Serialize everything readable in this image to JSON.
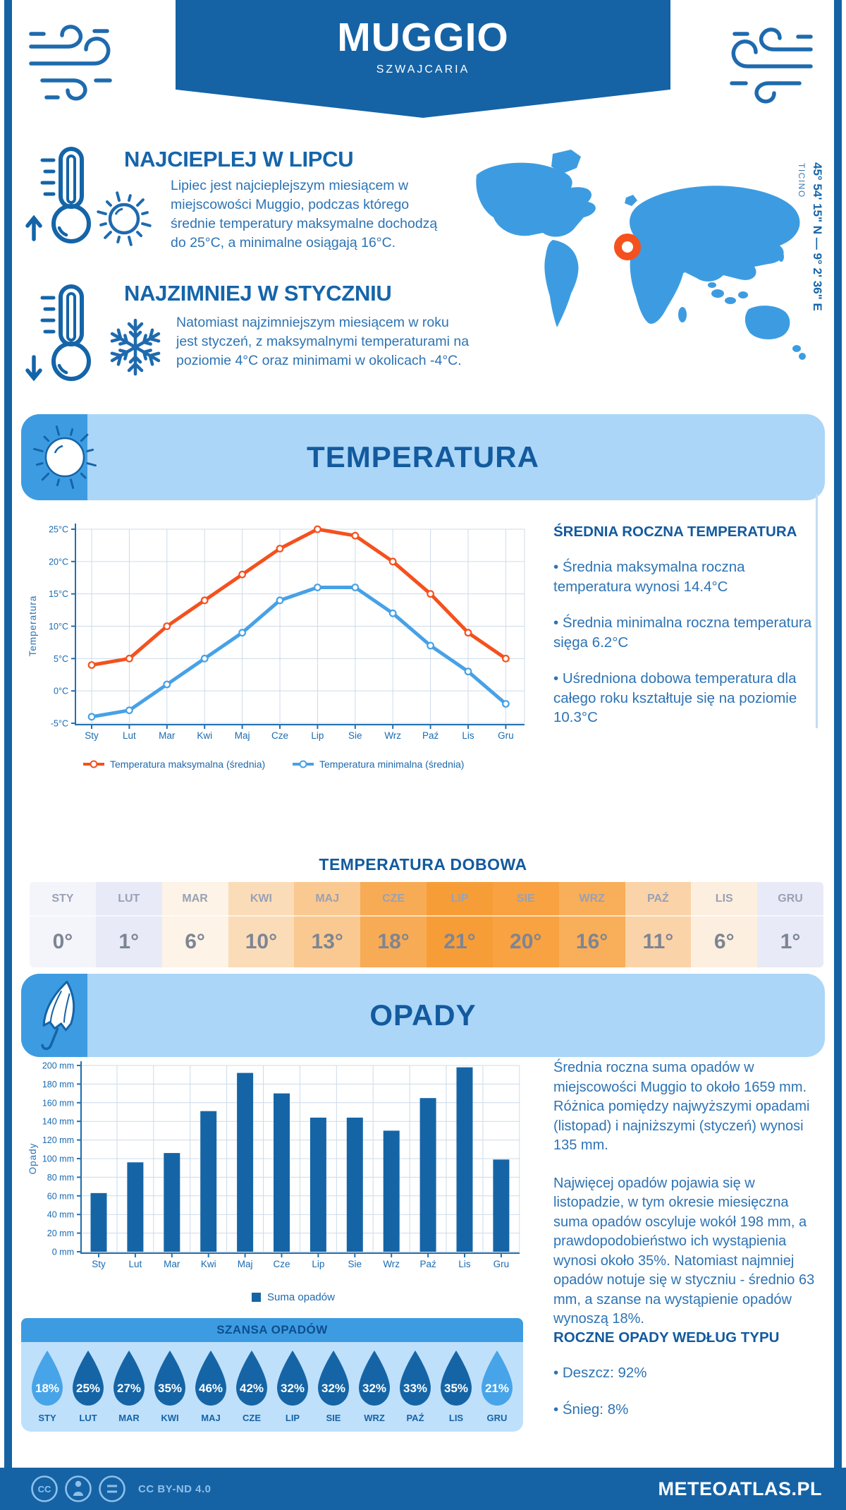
{
  "header": {
    "title": "MUGGIO",
    "subtitle": "SZWAJCARIA"
  },
  "highlights": {
    "warm": {
      "title": "NAJCIEPLEJ W LIPCU",
      "text": "Lipiec jest najcieplejszym miesiącem w miejscowości Muggio, podczas którego średnie temperatury maksymalne dochodzą do 25°C, a minimalne osiągają 16°C."
    },
    "cold": {
      "title": "NAJZIMNIEJ W STYCZNIU",
      "text": "Natomiast najzimniejszym miesiącem w roku jest styczeń, z maksymalnymi temperaturami na poziomie 4°C oraz minimami w okolicach -4°C."
    }
  },
  "map": {
    "coordinates": "45° 54' 15\" N — 9° 2' 36\" E",
    "region_label": "TICINO"
  },
  "temperature_section": {
    "banner": "TEMPERATURA",
    "annual": {
      "heading": "ŚREDNIA ROCZNA TEMPERATURA",
      "bullets": [
        "• Średnia maksymalna roczna temperatura wynosi 14.4°C",
        "• Średnia minimalna roczna temperatura sięga 6.2°C",
        "• Uśredniona dobowa temperatura dla całego roku kształtuje się na poziomie 10.3°C"
      ]
    }
  },
  "precipitation_section": {
    "banner": "OPADY",
    "summary_1": "Średnia roczna suma opadów w miejscowości Muggio to około 1659 mm. Różnica pomiędzy najwyższymi opadami (listopad) i najniższymi (styczeń) wynosi 135 mm.",
    "summary_2": "Najwięcej opadów pojawia się w listopadzie, w tym okresie miesięczna suma opadów oscyluje wokół 198 mm, a prawdopodobieństwo ich wystąpienia wynosi około 35%. Natomiast najmniej opadów notuje się w styczniu - średnio 63 mm, a szanse na wystąpienie opadów wynoszą 18%.",
    "types": {
      "heading": "ROCZNE OPADY WEDŁUG TYPU",
      "bullets": [
        "• Deszcz: 92%",
        "• Śnieg: 8%"
      ]
    }
  },
  "footer": {
    "license": "CC BY-ND 4.0",
    "brand": "METEOATLAS.PL"
  },
  "colors": {
    "primary_dark_blue": "#1563a5",
    "medium_blue": "#3d9ce1",
    "light_banner_blue": "#abd6f8",
    "chance_body_blue": "#bfe0fb",
    "body_text_blue": "#2d73b4",
    "heading_blue": "#135a9e",
    "max_line_orange": "#f4511e",
    "min_line_blue": "#47a1e6",
    "bar_blue": "#1565a6",
    "marker_orange": "#f4511e",
    "grid": "#ccdbea"
  },
  "icons": [
    "wind-icon",
    "thermometer-up-icon",
    "thermometer-down-icon",
    "sun-icon",
    "snowflake-icon",
    "umbrella-icon",
    "water-drop-icon",
    "location-ring-icon",
    "cc-icon",
    "cc-person-icon",
    "cc-nd-icon"
  ],
  "chart_data": [
    {
      "id": "temperature-line",
      "type": "line",
      "title": "TEMPERATURA",
      "ylabel": "Temperatura",
      "categories": [
        "Sty",
        "Lut",
        "Mar",
        "Kwi",
        "Maj",
        "Cze",
        "Lip",
        "Sie",
        "Wrz",
        "Paź",
        "Lis",
        "Gru"
      ],
      "ylim": [
        -5,
        25
      ],
      "ytick_step": 5,
      "ytick_suffix": "°C",
      "grid": true,
      "legend_position": "bottom",
      "series": [
        {
          "name": "Temperatura maksymalna (średnia)",
          "color": "#f4511e",
          "values": [
            4,
            5,
            10,
            14,
            18,
            22,
            25,
            24,
            20,
            15,
            9,
            5
          ]
        },
        {
          "name": "Temperatura minimalna (średnia)",
          "color": "#47a1e6",
          "values": [
            -4,
            -3,
            1,
            5,
            9,
            14,
            16,
            16,
            12,
            7,
            3,
            -2
          ]
        }
      ]
    },
    {
      "id": "precipitation-bar",
      "type": "bar",
      "title": "OPADY",
      "ylabel": "Opady",
      "legend": "Suma opadów",
      "categories": [
        "Sty",
        "Lut",
        "Mar",
        "Kwi",
        "Maj",
        "Cze",
        "Lip",
        "Sie",
        "Wrz",
        "Paź",
        "Lis",
        "Gru"
      ],
      "ylim": [
        0,
        200
      ],
      "ytick_step": 20,
      "ytick_suffix": " mm",
      "grid": true,
      "bar_color": "#1565a6",
      "values": [
        63,
        96,
        106,
        151,
        192,
        170,
        144,
        144,
        130,
        165,
        198,
        99
      ]
    },
    {
      "id": "daily-temperature-table",
      "type": "table",
      "title": "TEMPERATURA DOBOWA",
      "columns": [
        "STY",
        "LUT",
        "MAR",
        "KWI",
        "MAJ",
        "CZE",
        "LIP",
        "SIE",
        "WRZ",
        "PAŹ",
        "LIS",
        "GRU"
      ],
      "values": [
        "0°",
        "1°",
        "6°",
        "10°",
        "13°",
        "18°",
        "21°",
        "20°",
        "16°",
        "11°",
        "6°",
        "1°"
      ],
      "cell_colors": [
        "#f4f5fb",
        "#e8eaf7",
        "#fdf3e6",
        "#fbdcb9",
        "#fac991",
        "#f8ab55",
        "#f79d38",
        "#f8a242",
        "#f9ae59",
        "#fbd3a9",
        "#fdefdf",
        "#e8eaf7"
      ]
    },
    {
      "id": "precipitation-chance",
      "type": "pictogram",
      "title": "SZANSA OPADÓW",
      "categories": [
        "STY",
        "LUT",
        "MAR",
        "KWI",
        "MAJ",
        "CZE",
        "LIP",
        "SIE",
        "WRZ",
        "PAŹ",
        "LIS",
        "GRU"
      ],
      "values": [
        "18%",
        "25%",
        "27%",
        "35%",
        "46%",
        "42%",
        "32%",
        "32%",
        "32%",
        "33%",
        "35%",
        "21%"
      ],
      "drop_colors": [
        "#47a4e8",
        "#1565a6",
        "#1565a6",
        "#1565a6",
        "#1565a6",
        "#1565a6",
        "#1565a6",
        "#1565a6",
        "#1565a6",
        "#1565a6",
        "#1565a6",
        "#47a4e8"
      ]
    }
  ]
}
